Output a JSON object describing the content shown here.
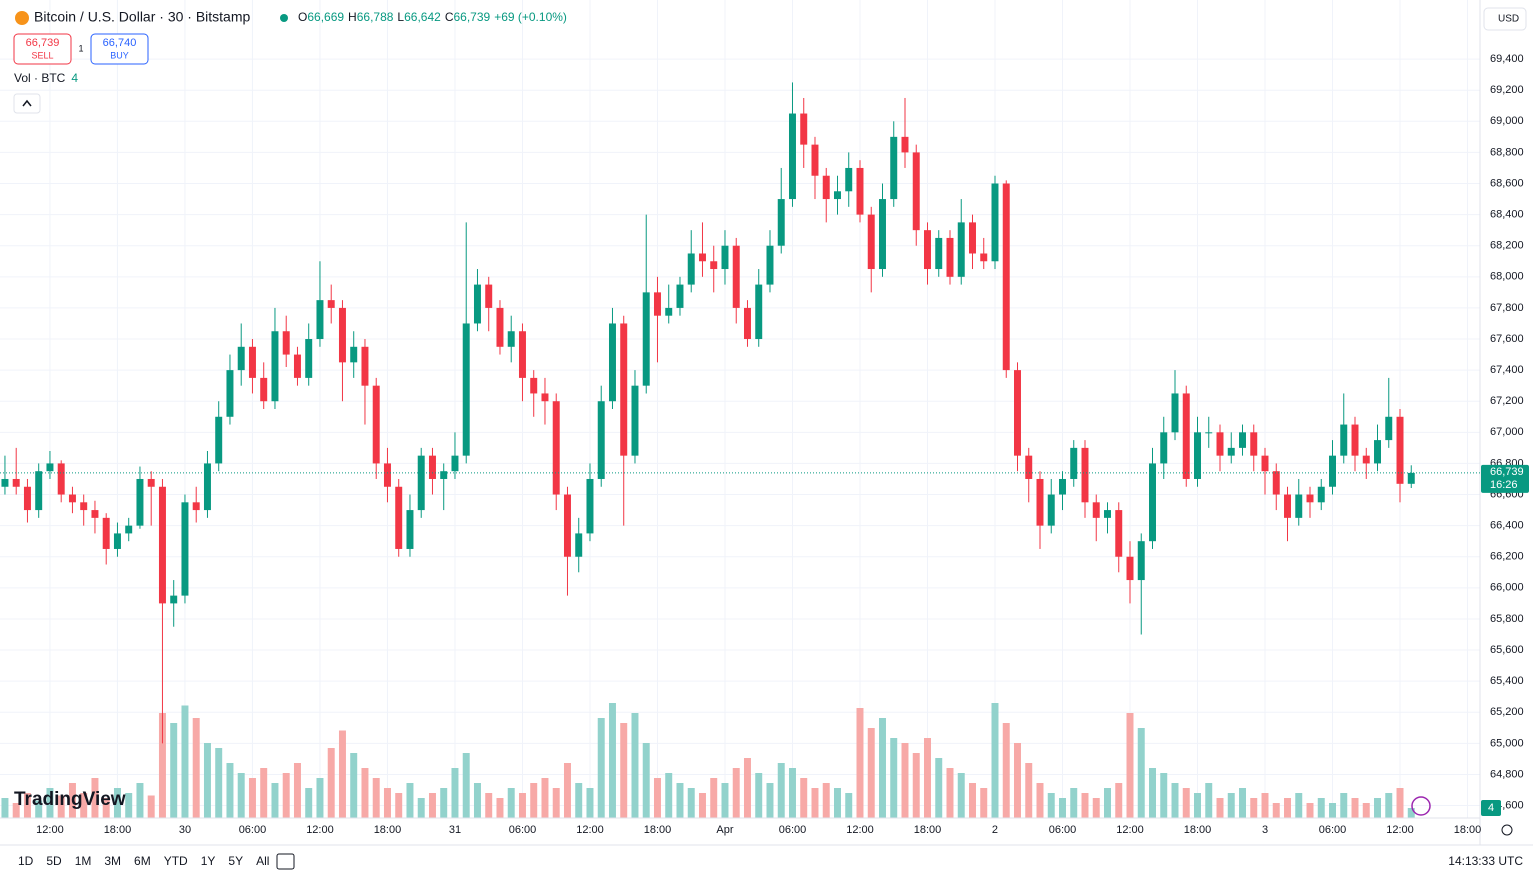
{
  "header": {
    "symbol": "Bitcoin / U.S. Dollar · 30 · Bitstamp",
    "o_label": "O",
    "o": "66,669",
    "h_label": "H",
    "h": "66,788",
    "l_label": "L",
    "l": "66,642",
    "c_label": "C",
    "c": "66,739",
    "change": "+69 (+0.10%)"
  },
  "trade": {
    "sell_price": "66,739",
    "sell": "SELL",
    "spread": "1",
    "buy_price": "66,740",
    "buy": "BUY"
  },
  "volume_legend": {
    "label": "Vol · BTC",
    "value": "4"
  },
  "currency": "USD",
  "ranges": [
    "1D",
    "5D",
    "1M",
    "3M",
    "6M",
    "YTD",
    "1Y",
    "5Y",
    "All"
  ],
  "clock": "14:13:33 UTC",
  "logo": "TradingView",
  "chart_data": {
    "type": "candlestick",
    "up_color": "#089981",
    "down_color": "#f23645",
    "up_volume_color": "#92d2cc",
    "down_volume_color": "#f7a9a7",
    "grid": true,
    "open": [
      66650,
      66700,
      66650,
      66500,
      66750,
      66800,
      66600,
      66550,
      66500,
      66450,
      66250,
      66350,
      66400,
      66700,
      66650,
      65900,
      65950,
      66550,
      66500,
      66800,
      67100,
      67400,
      67550,
      67350,
      67200,
      67650,
      67500,
      67350,
      67600,
      67850,
      67800,
      67450,
      67550,
      67300,
      66800,
      66650,
      66250,
      66500,
      66850,
      66700,
      66750,
      66850,
      67700,
      67950,
      67800,
      67550,
      67650,
      67350,
      67250,
      67200,
      66600,
      66200,
      66350,
      66700,
      67200,
      67700,
      66850,
      67300,
      67900,
      67750,
      67800,
      67950,
      68150,
      68100,
      68050,
      68200,
      67800,
      67600,
      67950,
      68200,
      68500,
      69050,
      68850,
      68650,
      68500,
      68550,
      68700,
      68400,
      68050,
      68500,
      68900,
      68800,
      68300,
      68050,
      68250,
      68000,
      68350,
      68150,
      68100,
      68600,
      67400,
      66850,
      66700,
      66400,
      66600,
      66700,
      66900,
      66550,
      66450,
      66500,
      66200,
      66050,
      66300,
      66800,
      67000,
      67250,
      66700,
      67000,
      67000,
      66850,
      66900,
      67000,
      66850,
      66750,
      66600,
      66450,
      66600,
      66550,
      66650,
      66850,
      67050,
      66850,
      66800,
      66950,
      67100,
      66669
    ],
    "high": [
      66850,
      66900,
      66700,
      66800,
      66880,
      66820,
      66650,
      66600,
      66560,
      66480,
      66420,
      66450,
      66780,
      66750,
      66700,
      66050,
      66600,
      66650,
      66880,
      67200,
      67500,
      67700,
      67600,
      67450,
      67800,
      67750,
      67550,
      67700,
      68100,
      67950,
      67850,
      67650,
      67600,
      67350,
      66900,
      66700,
      66600,
      66900,
      66900,
      66800,
      67000,
      68350,
      68050,
      68000,
      67850,
      67750,
      67700,
      67400,
      67350,
      67250,
      66650,
      66450,
      66800,
      67300,
      67800,
      67750,
      67400,
      68400,
      68000,
      67950,
      68000,
      68300,
      68350,
      68200,
      68300,
      68250,
      67850,
      68050,
      68300,
      68700,
      69250,
      69150,
      68900,
      68700,
      68650,
      68800,
      68750,
      68450,
      68600,
      69000,
      69150,
      68850,
      68350,
      68300,
      68300,
      68500,
      68400,
      68250,
      68650,
      68620,
      67450,
      66900,
      66750,
      66700,
      66750,
      66950,
      66950,
      66600,
      66550,
      66550,
      66300,
      66350,
      66900,
      67100,
      67400,
      67300,
      67100,
      67100,
      67050,
      67000,
      67050,
      67050,
      66900,
      66800,
      66650,
      66700,
      66650,
      66700,
      66950,
      67250,
      67100,
      66900,
      67050,
      67350,
      67150,
      66788
    ],
    "low": [
      66600,
      66600,
      66420,
      66450,
      66700,
      66550,
      66480,
      66400,
      66350,
      66150,
      66200,
      66300,
      66380,
      66400,
      65000,
      65750,
      65900,
      66420,
      66450,
      66750,
      67050,
      67300,
      67250,
      67150,
      67150,
      67420,
      67300,
      67300,
      67550,
      67700,
      67200,
      67350,
      67050,
      66700,
      66550,
      66200,
      66200,
      66450,
      66600,
      66500,
      66700,
      66800,
      67650,
      67650,
      67500,
      67450,
      67200,
      67100,
      67050,
      66500,
      65950,
      66100,
      66300,
      66650,
      67150,
      66400,
      66800,
      67250,
      67450,
      67700,
      67750,
      67900,
      68000,
      67900,
      67950,
      67700,
      67550,
      67550,
      67900,
      68150,
      68450,
      68700,
      68500,
      68350,
      68400,
      68450,
      68350,
      67900,
      68000,
      68450,
      68700,
      68200,
      67950,
      68000,
      67950,
      67950,
      68050,
      68050,
      68050,
      67350,
      66750,
      66550,
      66250,
      66350,
      66500,
      66650,
      66450,
      66300,
      66350,
      66100,
      65900,
      65700,
      66250,
      66700,
      66950,
      66650,
      66650,
      66900,
      66750,
      66800,
      66850,
      66750,
      66600,
      66500,
      66300,
      66400,
      66450,
      66500,
      66600,
      66800,
      66750,
      66700,
      66750,
      66900,
      66550,
      66642
    ],
    "close": [
      66700,
      66650,
      66500,
      66750,
      66800,
      66600,
      66550,
      66500,
      66450,
      66250,
      66350,
      66400,
      66700,
      66650,
      65900,
      65950,
      66550,
      66500,
      66800,
      67100,
      67400,
      67550,
      67350,
      67200,
      67650,
      67500,
      67350,
      67600,
      67850,
      67800,
      67450,
      67550,
      67300,
      66800,
      66650,
      66250,
      66500,
      66850,
      66700,
      66750,
      66850,
      67700,
      67950,
      67800,
      67550,
      67650,
      67350,
      67250,
      67200,
      66600,
      66200,
      66350,
      66700,
      67200,
      67700,
      66850,
      67300,
      67900,
      67750,
      67800,
      67950,
      68150,
      68100,
      68050,
      68200,
      67800,
      67600,
      67950,
      68200,
      68500,
      69050,
      68850,
      68650,
      68500,
      68550,
      68700,
      68400,
      68050,
      68500,
      68900,
      68800,
      68300,
      68050,
      68250,
      68000,
      68350,
      68150,
      68100,
      68600,
      67400,
      66850,
      66700,
      66400,
      66600,
      66700,
      66900,
      66550,
      66450,
      66500,
      66200,
      66050,
      66300,
      66800,
      67000,
      67250,
      66700,
      67000,
      67000,
      66850,
      66900,
      67000,
      66850,
      66750,
      66600,
      66450,
      66600,
      66550,
      66650,
      66850,
      67050,
      66850,
      66800,
      66950,
      67100,
      66669,
      66739
    ],
    "volume": [
      8,
      6,
      10,
      7,
      12,
      9,
      14,
      10,
      16,
      8,
      12,
      10,
      14,
      9,
      42,
      38,
      45,
      40,
      30,
      28,
      22,
      18,
      16,
      20,
      14,
      18,
      22,
      12,
      16,
      28,
      35,
      26,
      20,
      16,
      12,
      10,
      14,
      8,
      10,
      12,
      20,
      26,
      14,
      10,
      8,
      12,
      10,
      14,
      16,
      12,
      22,
      14,
      12,
      40,
      46,
      38,
      42,
      30,
      16,
      18,
      14,
      12,
      10,
      16,
      14,
      20,
      24,
      18,
      14,
      22,
      20,
      16,
      12,
      14,
      12,
      10,
      44,
      36,
      40,
      32,
      30,
      26,
      32,
      24,
      20,
      18,
      14,
      12,
      46,
      38,
      30,
      22,
      14,
      10,
      8,
      12,
      10,
      8,
      12,
      14,
      42,
      36,
      20,
      18,
      14,
      12,
      10,
      14,
      8,
      10,
      12,
      8,
      10,
      6,
      8,
      10,
      6,
      8,
      6,
      10,
      8,
      6,
      8,
      10,
      12,
      4
    ],
    "ylim": [
      64520,
      69780
    ],
    "volume_lim": [
      0,
      100
    ],
    "xlim": [
      -0.44,
      131.11
    ],
    "yticks": [
      {
        "value": 64600,
        "label": "64,600"
      },
      {
        "value": 64800,
        "label": "64,800"
      },
      {
        "value": 65000,
        "label": "65,000"
      },
      {
        "value": 65200,
        "label": "65,200"
      },
      {
        "value": 65400,
        "label": "65,400"
      },
      {
        "value": 65600,
        "label": "65,600"
      },
      {
        "value": 65800,
        "label": "65,800"
      },
      {
        "value": 66000,
        "label": "66,000"
      },
      {
        "value": 66200,
        "label": "66,200"
      },
      {
        "value": 66400,
        "label": "66,400"
      },
      {
        "value": 66600,
        "label": "66,600"
      },
      {
        "value": 66800,
        "label": "66,800"
      },
      {
        "value": 67000,
        "label": "67,000"
      },
      {
        "value": 67200,
        "label": "67,200"
      },
      {
        "value": 67400,
        "label": "67,400"
      },
      {
        "value": 67600,
        "label": "67,600"
      },
      {
        "value": 67800,
        "label": "67,800"
      },
      {
        "value": 68000,
        "label": "68,000"
      },
      {
        "value": 68200,
        "label": "68,200"
      },
      {
        "value": 68400,
        "label": "68,400"
      },
      {
        "value": 68600,
        "label": "68,600"
      },
      {
        "value": 68800,
        "label": "68,800"
      },
      {
        "value": 69000,
        "label": "69,000"
      },
      {
        "value": 69200,
        "label": "69,200"
      },
      {
        "value": 69400,
        "label": "69,400"
      }
    ],
    "xticks": [
      {
        "value": 4,
        "label": "12:00"
      },
      {
        "value": 10,
        "label": "18:00"
      },
      {
        "value": 16,
        "label": "30"
      },
      {
        "value": 22,
        "label": "06:00"
      },
      {
        "value": 28,
        "label": "12:00"
      },
      {
        "value": 34,
        "label": "18:00"
      },
      {
        "value": 40,
        "label": "31"
      },
      {
        "value": 46,
        "label": "06:00"
      },
      {
        "value": 52,
        "label": "12:00"
      },
      {
        "value": 58,
        "label": "18:00"
      },
      {
        "value": 64,
        "label": "Apr"
      },
      {
        "value": 70,
        "label": "06:00"
      },
      {
        "value": 76,
        "label": "12:00"
      },
      {
        "value": 82,
        "label": "18:00"
      },
      {
        "value": 88,
        "label": "2"
      },
      {
        "value": 94,
        "label": "06:00"
      },
      {
        "value": 100,
        "label": "12:00"
      },
      {
        "value": 106,
        "label": "18:00"
      },
      {
        "value": 112,
        "label": "3"
      },
      {
        "value": 118,
        "label": "06:00"
      },
      {
        "value": 124,
        "label": "12:00"
      },
      {
        "value": 130,
        "label": "18:00"
      }
    ],
    "last_price": {
      "value": 66739,
      "label": "66,739"
    },
    "countdown": "16:26"
  }
}
